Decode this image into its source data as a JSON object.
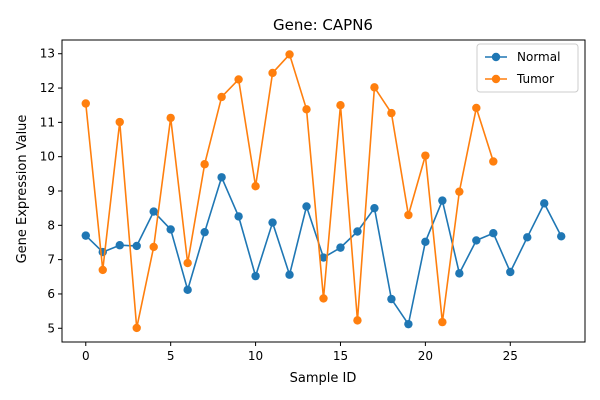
{
  "chart_data": {
    "type": "line",
    "title": "Gene: CAPN6",
    "xlabel": "Sample ID",
    "ylabel": "Gene Expression Value",
    "xlim": [
      -1.4,
      29.4
    ],
    "ylim": [
      4.6,
      13.4
    ],
    "xticks": [
      0,
      5,
      10,
      15,
      20,
      25
    ],
    "yticks": [
      5,
      6,
      7,
      8,
      9,
      10,
      11,
      12,
      13
    ],
    "grid": false,
    "legend_position": "top-right",
    "series": [
      {
        "name": "Normal",
        "color": "#1f77b4",
        "x": [
          0,
          1,
          2,
          3,
          4,
          5,
          6,
          7,
          8,
          9,
          10,
          11,
          12,
          13,
          14,
          15,
          16,
          17,
          18,
          19,
          20,
          21,
          22,
          23,
          24,
          25,
          26,
          27,
          28
        ],
        "values": [
          7.7,
          7.22,
          7.42,
          7.4,
          8.4,
          7.88,
          6.12,
          7.8,
          9.4,
          8.26,
          6.52,
          8.08,
          6.56,
          8.55,
          7.06,
          7.35,
          7.82,
          8.5,
          5.85,
          5.12,
          7.52,
          8.72,
          6.6,
          7.56,
          7.77,
          6.64,
          7.65,
          8.64,
          7.68
        ]
      },
      {
        "name": "Tumor",
        "color": "#ff7f0e",
        "x": [
          0,
          1,
          2,
          3,
          4,
          5,
          6,
          7,
          8,
          9,
          10,
          11,
          12,
          13,
          14,
          15,
          16,
          17,
          18,
          19,
          20,
          21,
          22,
          23,
          24
        ],
        "values": [
          11.55,
          6.7,
          11.01,
          5.01,
          7.37,
          11.13,
          6.9,
          9.78,
          11.74,
          12.25,
          9.14,
          12.44,
          12.98,
          11.38,
          5.87,
          11.5,
          5.23,
          12.02,
          11.27,
          8.3,
          10.03,
          5.18,
          8.98,
          11.42,
          9.86
        ]
      }
    ]
  }
}
